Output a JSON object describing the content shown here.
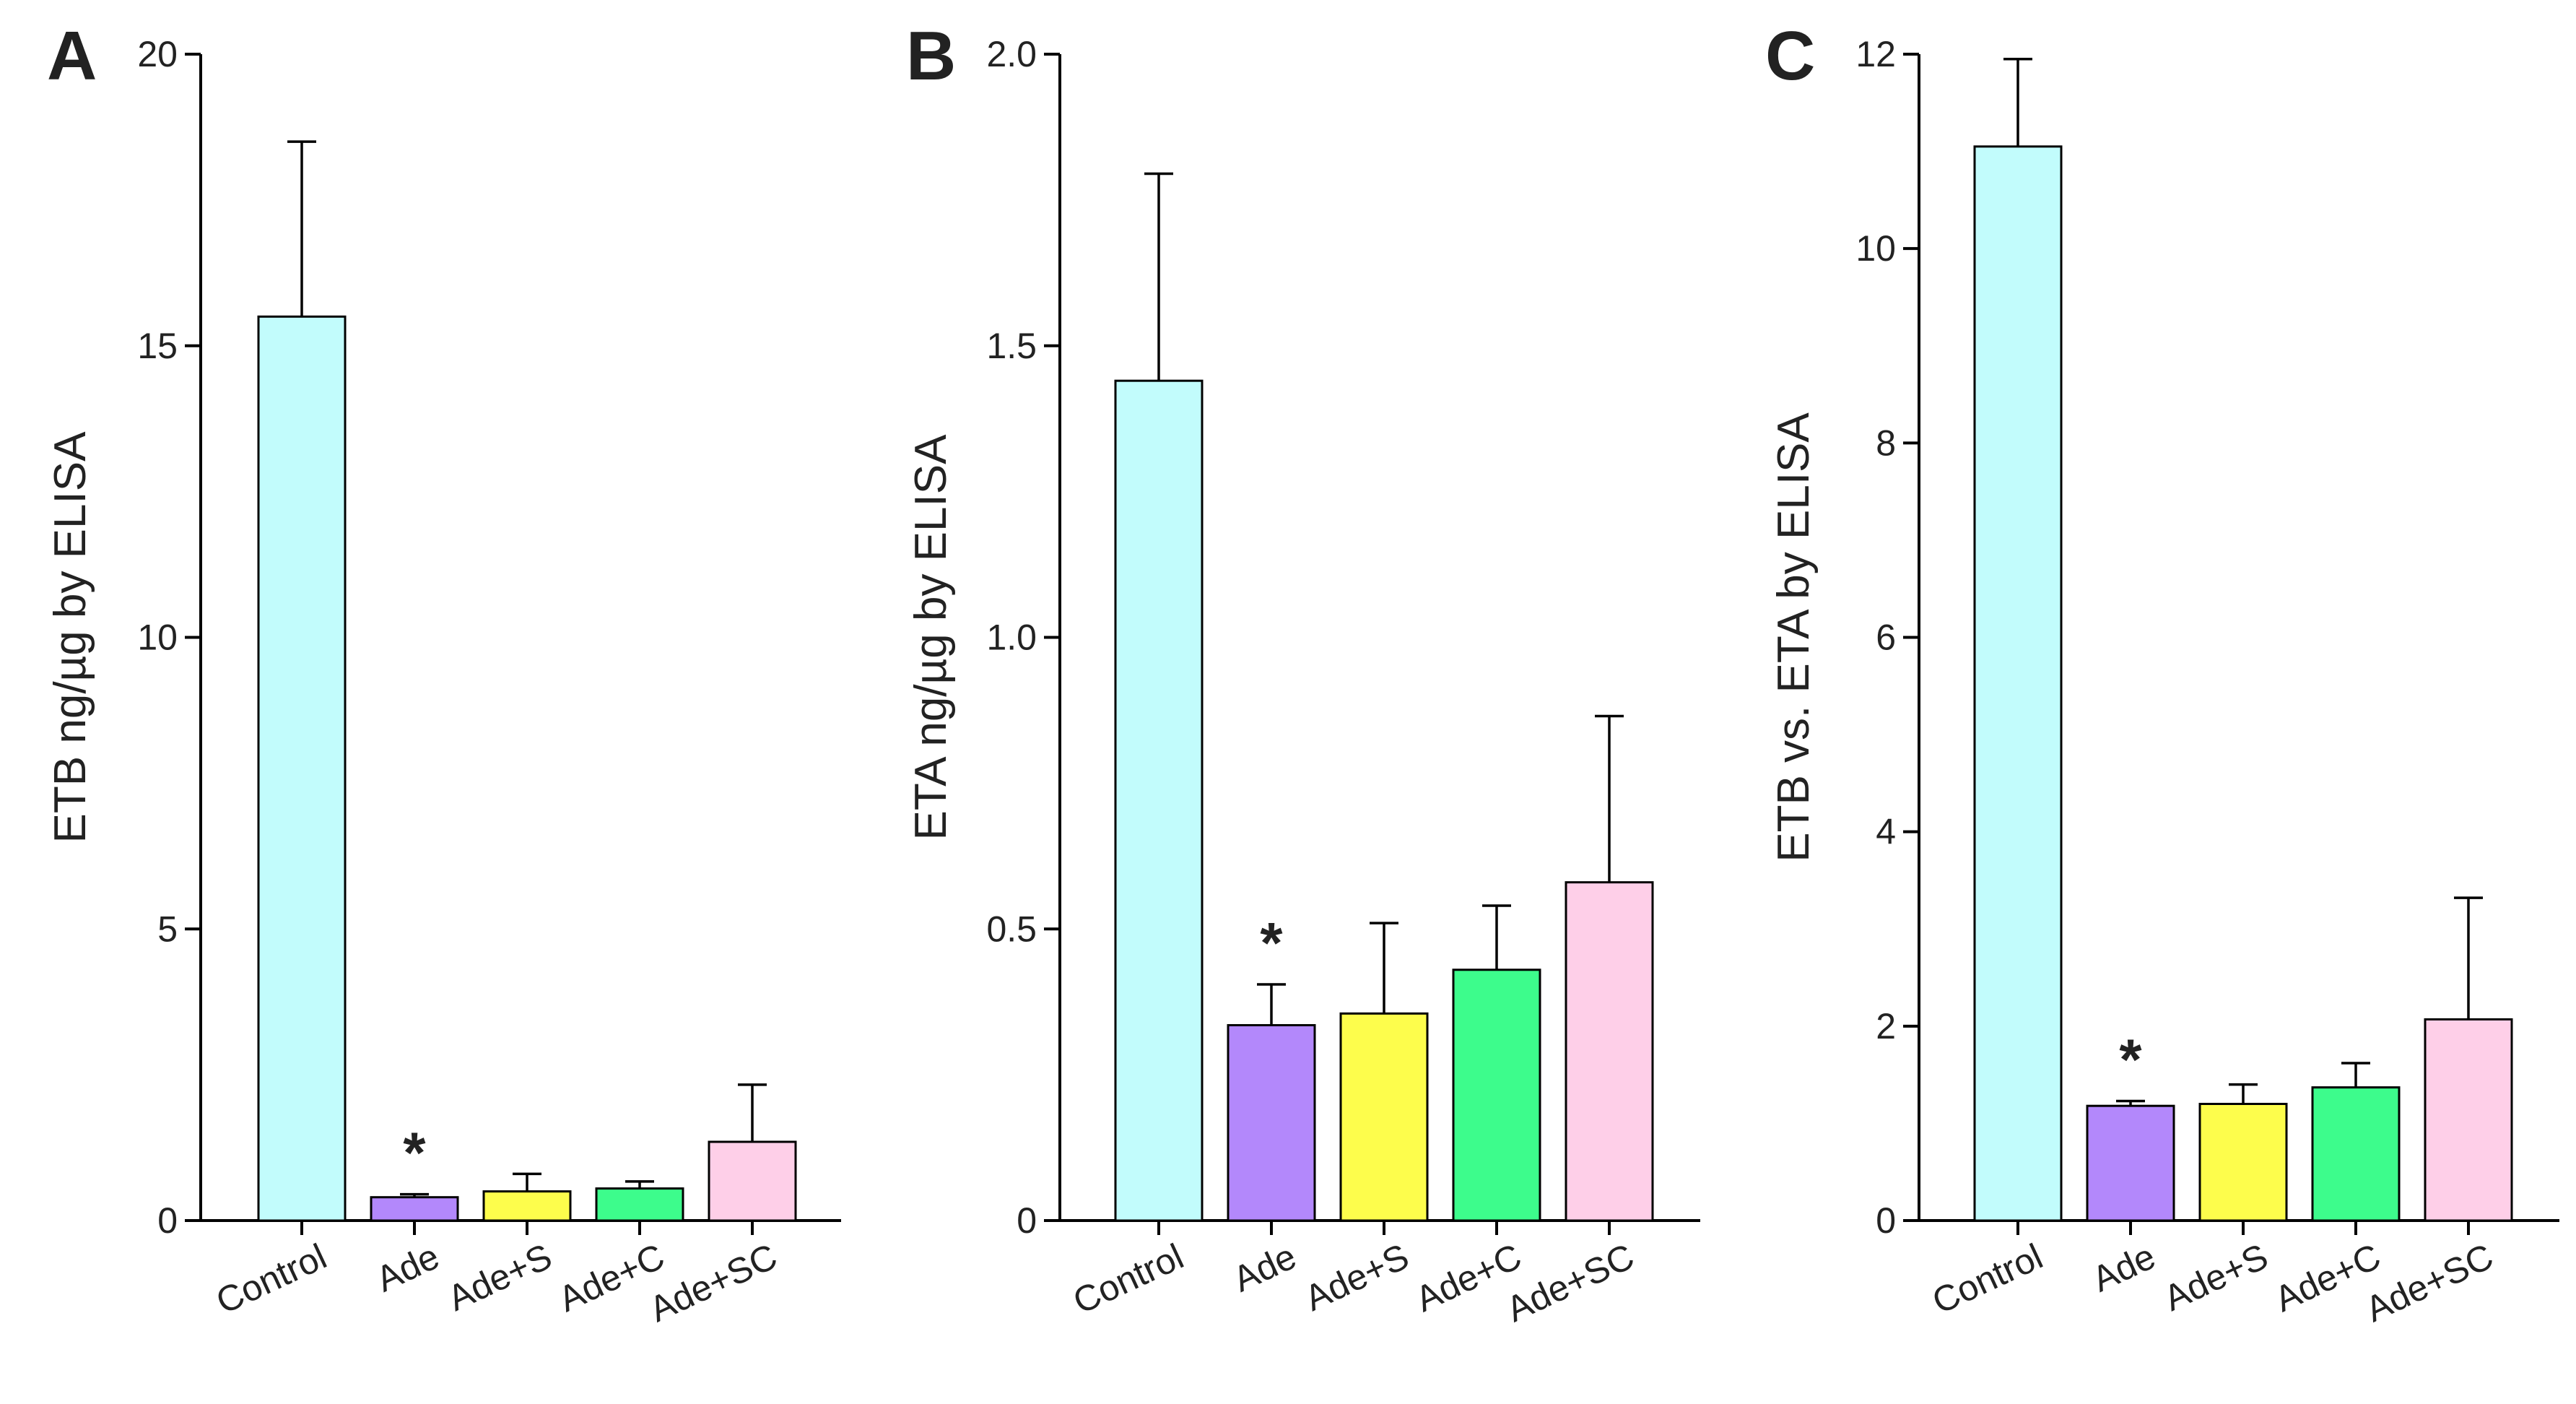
{
  "chart_data": [
    {
      "type": "bar",
      "panel": "A",
      "ylabel": "ETB ng/µg by ELISA",
      "ylim": [
        0,
        20
      ],
      "yticks": [
        0,
        5,
        10,
        15,
        20
      ],
      "categories": [
        "Control",
        "Ade",
        "Ade+S",
        "Ade+C",
        "Ade+SC"
      ],
      "values": [
        15.5,
        0.4,
        0.5,
        0.55,
        1.35
      ],
      "errors": [
        3.0,
        0.05,
        0.3,
        0.12,
        0.98
      ],
      "colors": [
        "#c2fcfc",
        "#b388fb",
        "#fdfd4c",
        "#3dfc8c",
        "#fecfe8"
      ],
      "significance": [
        {
          "category": "Ade",
          "label": "*"
        }
      ]
    },
    {
      "type": "bar",
      "panel": "B",
      "ylabel": "ETA ng/µg by ELISA",
      "ylim": [
        0,
        2.0
      ],
      "yticks": [
        "0",
        "0.5",
        "1.0",
        "1.5",
        "2.0"
      ],
      "categories": [
        "Control",
        "Ade",
        "Ade+S",
        "Ade+C",
        "Ade+SC"
      ],
      "values": [
        1.44,
        0.335,
        0.355,
        0.43,
        0.58
      ],
      "errors": [
        0.355,
        0.07,
        0.155,
        0.11,
        0.285
      ],
      "colors": [
        "#c2fcfc",
        "#b388fb",
        "#fdfd4c",
        "#3dfc8c",
        "#fecfe8"
      ],
      "significance": [
        {
          "category": "Ade",
          "label": "*"
        }
      ]
    },
    {
      "type": "bar",
      "panel": "C",
      "ylabel": "ETB vs. ETA by ELISA",
      "ylim": [
        0,
        12
      ],
      "yticks": [
        0,
        2,
        4,
        6,
        8,
        10,
        12
      ],
      "categories": [
        "Control",
        "Ade",
        "Ade+S",
        "Ade+C",
        "Ade+SC"
      ],
      "values": [
        11.05,
        1.18,
        1.2,
        1.37,
        2.07
      ],
      "errors": [
        0.9,
        0.05,
        0.2,
        0.25,
        1.25
      ],
      "colors": [
        "#c2fcfc",
        "#b388fb",
        "#fdfd4c",
        "#3dfc8c",
        "#fecfe8"
      ],
      "significance": [
        {
          "category": "Ade",
          "label": "*"
        }
      ]
    }
  ]
}
